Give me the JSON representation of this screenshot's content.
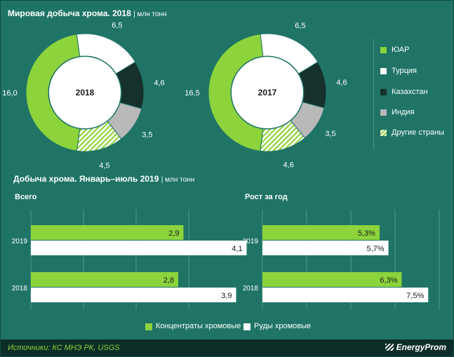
{
  "header": {
    "title": "Мировая добыча хрома. 2018",
    "unit": "млн тонн"
  },
  "colors": {
    "background": "#1f7466",
    "green": "#8cd33c",
    "white": "#ffffff",
    "dark": "#16302c",
    "gray": "#b9b9b9",
    "hatch": "#8cd33c",
    "source": "#8cd33c"
  },
  "legend": [
    {
      "label": "ЮАР",
      "swatch": "green"
    },
    {
      "label": "Турция",
      "swatch": "white"
    },
    {
      "label": "Казахстан",
      "swatch": "dark"
    },
    {
      "label": "Индия",
      "swatch": "gray"
    },
    {
      "label": "Другие страны",
      "swatch": "hatch"
    }
  ],
  "section2": {
    "title": "Добыча хрома. Январь–июль 2019",
    "unit": "млн тонн"
  },
  "bar_legend": [
    {
      "label": "Концентраты хромовые",
      "swatch": "green"
    },
    {
      "label": "Руды хромовые",
      "swatch": "white"
    }
  ],
  "footer": {
    "source": "Источники: КС МНЭ РК, USGS",
    "brand": "EnergyProm"
  },
  "chart_data": [
    {
      "type": "pie",
      "center_label": "2018",
      "categories": [
        "ЮАР",
        "Турция",
        "Казахстан",
        "Индия",
        "Другие страны"
      ],
      "values": [
        16.0,
        6.5,
        4.6,
        3.5,
        4.5
      ],
      "labels": [
        "16,0",
        "6,5",
        "4,6",
        "3,5",
        "4,5"
      ]
    },
    {
      "type": "pie",
      "center_label": "2017",
      "categories": [
        "ЮАР",
        "Турция",
        "Казахстан",
        "Индия",
        "Другие страны"
      ],
      "values": [
        16.5,
        6.5,
        4.6,
        3.5,
        4.6
      ],
      "labels": [
        "16,5",
        "6,5",
        "4,6",
        "3,5",
        "4,6"
      ]
    },
    {
      "type": "bar",
      "title": "Всего",
      "categories": [
        "2019",
        "2018"
      ],
      "series": [
        {
          "name": "Концентраты хромовые",
          "values": [
            2.9,
            2.8
          ],
          "labels": [
            "2,9",
            "2,8"
          ]
        },
        {
          "name": "Руды хромовые",
          "values": [
            4.1,
            3.9
          ],
          "labels": [
            "4,1",
            "3,9"
          ]
        }
      ],
      "xlim": [
        0,
        6
      ]
    },
    {
      "type": "bar",
      "title": "Рост за год",
      "categories": [
        "2019",
        "2018"
      ],
      "series": [
        {
          "name": "Концентраты хромовые",
          "values": [
            5.3,
            6.3
          ],
          "labels": [
            "5,3%",
            "6,3%"
          ]
        },
        {
          "name": "Руды хромовые",
          "values": [
            5.7,
            7.5
          ],
          "labels": [
            "5,7%",
            "7,5%"
          ]
        }
      ],
      "xlim": [
        0,
        8
      ]
    }
  ]
}
